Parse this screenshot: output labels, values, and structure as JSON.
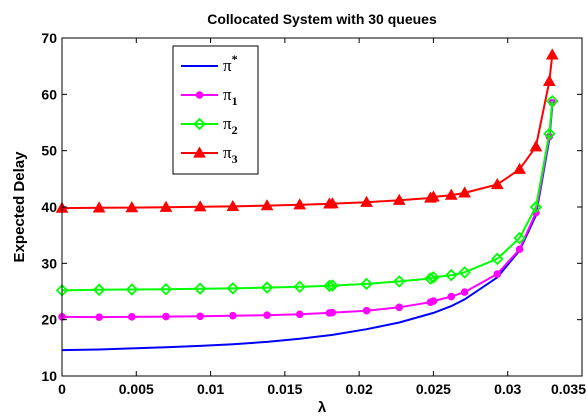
{
  "chart_data": {
    "type": "line",
    "title": "Collocated System with 30 queues",
    "xlabel": "λ",
    "ylabel": "Expected Delay",
    "xlim": [
      0,
      0.035
    ],
    "ylim": [
      10,
      70
    ],
    "xticks": [
      0,
      0.005,
      0.01,
      0.015,
      0.02,
      0.025,
      0.03,
      0.035
    ],
    "xtick_labels": [
      "0",
      "0.005",
      "0.01",
      "0.015",
      "0.02",
      "0.025",
      "0.03",
      "0.035"
    ],
    "yticks": [
      10,
      20,
      30,
      40,
      50,
      60,
      70
    ],
    "ytick_labels": [
      "10",
      "20",
      "30",
      "40",
      "50",
      "60",
      "70"
    ],
    "grid": false,
    "legend_position": "top-left",
    "series": [
      {
        "name": "π*",
        "base": "π",
        "sub": "",
        "sup": "*",
        "color": "#0000ff",
        "marker": "none",
        "points": [
          [
            0,
            14.6
          ],
          [
            0.0025,
            14.7
          ],
          [
            0.0047,
            14.9
          ],
          [
            0.007,
            15.1
          ],
          [
            0.0093,
            15.35
          ],
          [
            0.0115,
            15.65
          ],
          [
            0.0138,
            16.05
          ],
          [
            0.016,
            16.6
          ],
          [
            0.0182,
            17.3
          ],
          [
            0.0205,
            18.3
          ],
          [
            0.0227,
            19.5
          ],
          [
            0.025,
            21.2
          ],
          [
            0.0262,
            22.4
          ],
          [
            0.0271,
            23.6
          ],
          [
            0.0293,
            27.5
          ],
          [
            0.0308,
            32.3
          ],
          [
            0.0319,
            38.5
          ],
          [
            0.0328,
            52
          ],
          [
            0.033,
            58
          ]
        ]
      },
      {
        "name": "π1",
        "base": "π",
        "sub": "1",
        "sup": "",
        "color": "#ff00ff",
        "marker": "circle",
        "points": [
          [
            0,
            20.5
          ],
          [
            0.0025,
            20.45
          ],
          [
            0.0047,
            20.5
          ],
          [
            0.007,
            20.55
          ],
          [
            0.0093,
            20.6
          ],
          [
            0.0115,
            20.7
          ],
          [
            0.0138,
            20.8
          ],
          [
            0.016,
            20.95
          ],
          [
            0.018,
            21.2
          ],
          [
            0.0182,
            21.25
          ],
          [
            0.0205,
            21.6
          ],
          [
            0.0227,
            22.2
          ],
          [
            0.0248,
            23.1
          ],
          [
            0.025,
            23.3
          ],
          [
            0.0262,
            24.1
          ],
          [
            0.0271,
            24.9
          ],
          [
            0.0293,
            28.1
          ],
          [
            0.0308,
            32.5
          ],
          [
            0.0319,
            39.0
          ],
          [
            0.0328,
            52.5
          ],
          [
            0.033,
            58.5
          ]
        ]
      },
      {
        "name": "π2",
        "base": "π",
        "sub": "2",
        "sup": "",
        "color": "#00ff00",
        "marker": "diamond",
        "points": [
          [
            0,
            25.2
          ],
          [
            0.0025,
            25.3
          ],
          [
            0.0047,
            25.35
          ],
          [
            0.007,
            25.4
          ],
          [
            0.0093,
            25.5
          ],
          [
            0.0115,
            25.55
          ],
          [
            0.0138,
            25.7
          ],
          [
            0.016,
            25.85
          ],
          [
            0.018,
            26.0
          ],
          [
            0.0182,
            26.05
          ],
          [
            0.0205,
            26.35
          ],
          [
            0.0227,
            26.8
          ],
          [
            0.0248,
            27.3
          ],
          [
            0.025,
            27.5
          ],
          [
            0.0262,
            27.9
          ],
          [
            0.0271,
            28.4
          ],
          [
            0.0293,
            30.8
          ],
          [
            0.0308,
            34.5
          ],
          [
            0.0319,
            40.0
          ],
          [
            0.0328,
            53.0
          ],
          [
            0.033,
            58.8
          ]
        ]
      },
      {
        "name": "π3",
        "base": "π",
        "sub": "3",
        "sup": "",
        "color": "#ff0000",
        "marker": "triangle",
        "points": [
          [
            0,
            39.8
          ],
          [
            0.0025,
            39.85
          ],
          [
            0.0047,
            39.9
          ],
          [
            0.007,
            39.95
          ],
          [
            0.0093,
            40.05
          ],
          [
            0.0115,
            40.1
          ],
          [
            0.0138,
            40.25
          ],
          [
            0.016,
            40.4
          ],
          [
            0.018,
            40.55
          ],
          [
            0.0182,
            40.6
          ],
          [
            0.0205,
            40.85
          ],
          [
            0.0227,
            41.2
          ],
          [
            0.0248,
            41.6
          ],
          [
            0.025,
            41.8
          ],
          [
            0.0262,
            42.1
          ],
          [
            0.0271,
            42.5
          ],
          [
            0.0293,
            44.0
          ],
          [
            0.0308,
            46.7
          ],
          [
            0.0319,
            50.7
          ],
          [
            0.0328,
            62.3
          ],
          [
            0.033,
            67.0
          ]
        ]
      }
    ]
  }
}
